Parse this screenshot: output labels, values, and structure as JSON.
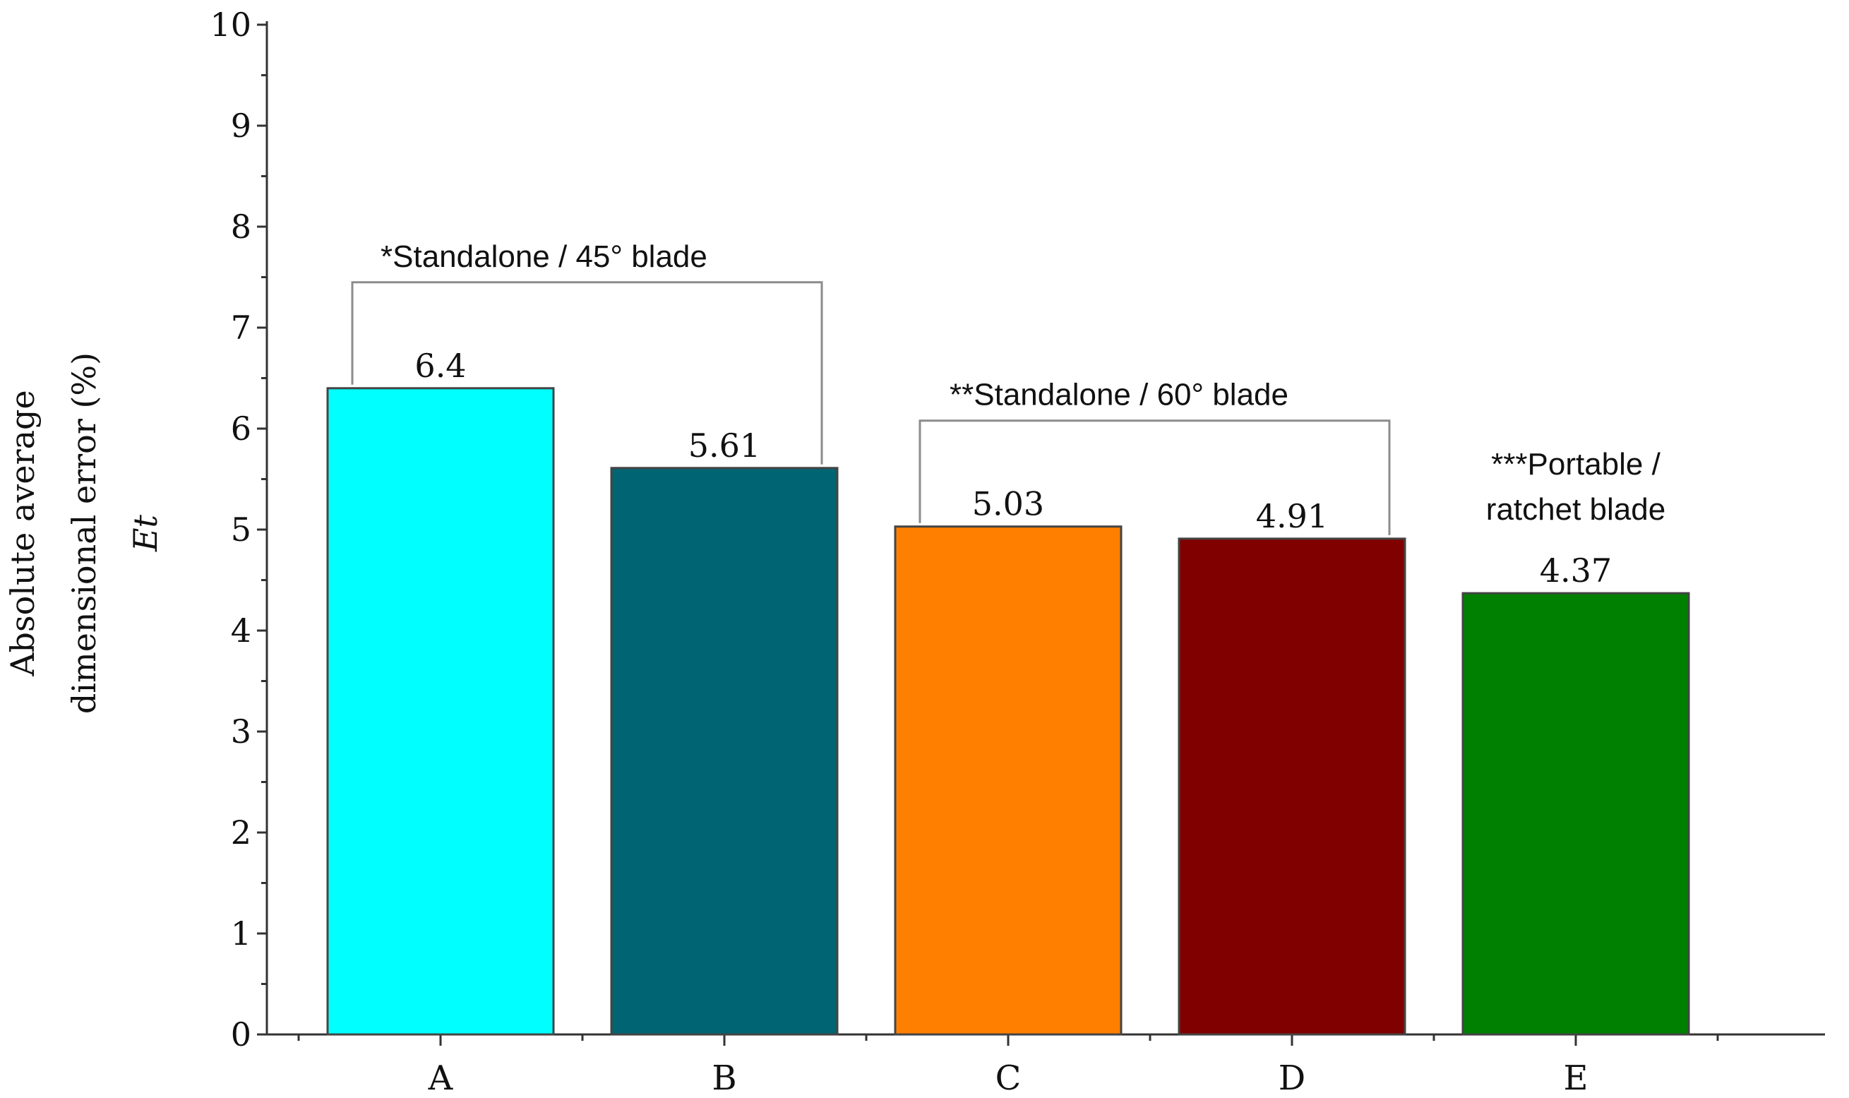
{
  "chart_data": {
    "type": "bar",
    "categories": [
      "A",
      "B",
      "C",
      "D",
      "E"
    ],
    "values": [
      6.4,
      5.61,
      5.03,
      4.91,
      4.37
    ],
    "data_labels": [
      "6.4",
      "5.61",
      "5.03",
      "4.91",
      "4.37"
    ],
    "colors": [
      "#00ffff",
      "#006472",
      "#ff8000",
      "#800000",
      "#008000"
    ],
    "title": "",
    "xlabel": "",
    "ylabel_lines": [
      "Absolute average",
      "dimensional error (%)",
      "Et"
    ],
    "ylim": [
      0,
      10
    ],
    "yticks": [
      0,
      1,
      2,
      3,
      4,
      5,
      6,
      7,
      8,
      9,
      10
    ],
    "grid": false,
    "groups": [
      {
        "label": "*Standalone / 45° blade",
        "categories": [
          "A",
          "B"
        ],
        "bracket": true
      },
      {
        "label": "**Standalone / 60° blade",
        "categories": [
          "C",
          "D"
        ],
        "bracket": true
      },
      {
        "label_lines": [
          "***Portable /",
          "ratchet blade"
        ],
        "categories": [
          "E"
        ],
        "bracket": false
      }
    ]
  }
}
